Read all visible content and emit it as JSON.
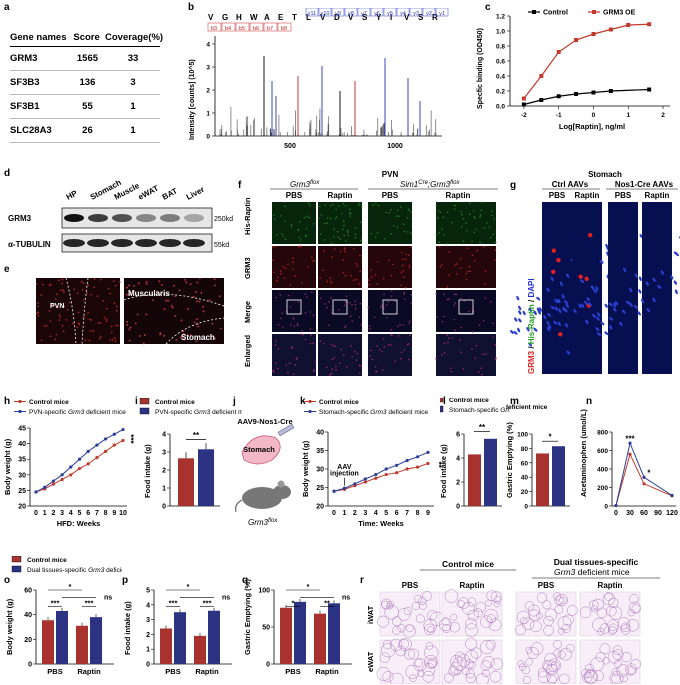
{
  "panels": {
    "a": "a",
    "b": "b",
    "c": "c",
    "d": "d",
    "e": "e",
    "f": "f",
    "g": "g",
    "h": "h",
    "i": "i",
    "j": "j",
    "k": "k",
    "l": "l",
    "m": "m",
    "n": "n",
    "o": "o",
    "p": "p",
    "q": "q",
    "r": "r"
  },
  "table_a": {
    "headers": [
      "Gene names",
      "Score",
      "Coverage(%)"
    ],
    "rows": [
      [
        "GRM3",
        "1565",
        "33"
      ],
      [
        "SF3B3",
        "136",
        "3"
      ],
      [
        "SF3B1",
        "55",
        "1"
      ],
      [
        "SLC28A3",
        "26",
        "1"
      ]
    ]
  },
  "panel_b": {
    "sequence": [
      "V",
      "G",
      "H",
      "W",
      "A",
      "E",
      "T",
      "L",
      "V",
      "D",
      "V",
      "S",
      "Y",
      "I",
      "V",
      "S",
      "R"
    ],
    "y_ions": [
      "y11",
      "y10",
      "y9",
      "y8",
      "y7",
      "y6",
      "y5",
      "y4",
      "y3",
      "y2",
      "y1"
    ],
    "b_ions": [
      "b3",
      "b4",
      "b5",
      "b6",
      "b7",
      "b8"
    ],
    "ylabel": "Intensity [counts] (10^5)",
    "xticks": [
      "500",
      "1000"
    ],
    "yticks": [
      "0",
      "1",
      "2",
      "3",
      "4"
    ]
  },
  "chart_c": {
    "type": "line",
    "ylabel": "Specfic binding (OD450)",
    "xlabel": "Log[Raptin], ng/ml",
    "xlim": [
      -2.4,
      2.2
    ],
    "ylim": [
      0,
      1.2
    ],
    "xticks": [
      "-2",
      "-1",
      "0",
      "1",
      "2"
    ],
    "yticks": [
      "0.0",
      "0.2",
      "0.4",
      "0.6",
      "0.8",
      "1.0",
      "1.2"
    ],
    "legend": [
      "Control",
      "GRM3 OE"
    ],
    "series": [
      {
        "name": "Control",
        "color": "#000000",
        "x": [
          -2,
          -1.5,
          -1,
          -0.5,
          0,
          0.5,
          1.6
        ],
        "y": [
          0.02,
          0.08,
          0.13,
          0.16,
          0.18,
          0.2,
          0.22
        ]
      },
      {
        "name": "GRM3 OE",
        "color": "#c0392b",
        "x": [
          -2,
          -1.5,
          -1,
          -0.5,
          0,
          0.5,
          1,
          1.6
        ],
        "y": [
          0.1,
          0.4,
          0.72,
          0.88,
          0.96,
          1.02,
          1.08,
          1.09
        ]
      }
    ]
  },
  "panel_d": {
    "lanes": [
      "HP",
      "Stomach",
      "Muscle",
      "eWAT",
      "BAT",
      "Liver"
    ],
    "rows": [
      "GRM3",
      "α-TUBULIN"
    ],
    "sizes": [
      "250kd",
      "55kd"
    ]
  },
  "panel_e": {
    "labels": [
      "PVN",
      "Muscularis",
      "Stomach"
    ]
  },
  "panel_f": {
    "title": "PVN",
    "groups": [
      "Grm3",
      "flox",
      "Sim1",
      "Cre",
      ";Grm3",
      "flox"
    ],
    "conds": [
      "PBS",
      "Raptin",
      "PBS",
      "Raptin"
    ],
    "rows": [
      "His-Raptin",
      "GRM3",
      "Merge",
      "Enlarged"
    ]
  },
  "panel_g": {
    "title": "Stomach",
    "groups": [
      "Ctrl AAVs",
      "Nos1-Cre AAVs"
    ],
    "conds": [
      "PBS",
      "Raptin",
      "PBS",
      "Raptin"
    ],
    "side": [
      "GRM3",
      " / ",
      "His-Raptin",
      " / ",
      "DAPI"
    ]
  },
  "chart_h": {
    "type": "line",
    "ylabel": "Body weight (g)",
    "xlabel": "HFD: Weeks",
    "ylim": [
      20,
      45
    ],
    "yticks": [
      "20",
      "25",
      "30",
      "35",
      "40",
      "45"
    ],
    "xticks": [
      "0",
      "1",
      "2",
      "3",
      "4",
      "5",
      "6",
      "7",
      "8",
      "9",
      "10"
    ],
    "legend_prefix": [
      "Control mice",
      "PVN-specific "
    ],
    "legend_gene": "Grm3",
    "legend_suffix": " deficient mice",
    "significance": "***",
    "series": [
      {
        "name": "Control mice",
        "color": "#c0392b",
        "x": [
          0,
          1,
          2,
          3,
          4,
          5,
          6,
          7,
          8,
          9,
          10
        ],
        "y": [
          24.5,
          25.5,
          27,
          28.5,
          30,
          32,
          33.5,
          35.5,
          37.5,
          39.5,
          41
        ]
      },
      {
        "name": "PVN-specific Grm3 deficient mice",
        "color": "#2c3e99",
        "x": [
          0,
          1,
          2,
          3,
          4,
          5,
          6,
          7,
          8,
          9,
          10
        ],
        "y": [
          24.5,
          26,
          28,
          30,
          32.5,
          35,
          37.5,
          39.5,
          41.5,
          43,
          44.5
        ]
      }
    ]
  },
  "chart_i": {
    "type": "bar",
    "ylabel": "Food intake (g)",
    "ylim": [
      0,
      4
    ],
    "yticks": [
      "0",
      "1",
      "2",
      "3",
      "4"
    ],
    "legend_prefix": [
      "Control mice",
      "PVN-specific "
    ],
    "legend_gene": "Grm3",
    "legend_suffix": " deficient mice",
    "significance": "**",
    "values": [
      2.65,
      3.15
    ],
    "colors": [
      "#a8322e",
      "#2b3382"
    ]
  },
  "panel_j": {
    "line1": "AAV9-Nos1-Cre",
    "organ": "Stomach",
    "mouse_gene": "Grm3",
    "mouse_sup": "flox"
  },
  "chart_k": {
    "type": "line",
    "ylabel": "Body weight (g)",
    "xlabel": "Time: Weeks",
    "ylim": [
      20,
      40
    ],
    "yticks": [
      "20",
      "25",
      "30",
      "35",
      "40"
    ],
    "xticks": [
      "0",
      "1",
      "2",
      "3",
      "4",
      "5",
      "6",
      "7",
      "8",
      "9"
    ],
    "legend_prefix": [
      "Control mice",
      "Stomach-specific "
    ],
    "legend_gene": "Grm3",
    "legend_suffix": " deficient mice",
    "annotation": [
      "AAV",
      "injection"
    ],
    "significance": "**",
    "series": [
      {
        "name": "Control mice",
        "color": "#c0392b",
        "x": [
          0,
          1,
          2,
          3,
          4,
          5,
          6,
          7,
          8,
          9
        ],
        "y": [
          24,
          24.5,
          25.5,
          26.5,
          27.5,
          28.5,
          29,
          30,
          30.5,
          31.5
        ]
      },
      {
        "name": "Stomach-specific Grm3 deficient mice",
        "color": "#2c3e99",
        "x": [
          0,
          1,
          2,
          3,
          4,
          5,
          6,
          7,
          8,
          9
        ],
        "y": [
          24,
          24.8,
          26,
          27.3,
          28.5,
          30,
          31,
          32.3,
          33.3,
          34.5
        ]
      }
    ]
  },
  "chart_l": {
    "type": "bar",
    "ylabel": "Food intake (g)",
    "ylim": [
      0,
      6
    ],
    "yticks": [
      "0",
      "2",
      "4",
      "6"
    ],
    "significance": "**",
    "values": [
      4.3,
      5.6
    ],
    "colors": [
      "#a8322e",
      "#2b3382"
    ],
    "legend_prefix": [
      "Control mice",
      "Stomach-specific "
    ],
    "legend_gene": "Grm3",
    "legend_suffix": " deficient mice"
  },
  "chart_m": {
    "type": "bar",
    "ylabel": "Gastric Emptying (%)",
    "ylim": [
      0,
      100
    ],
    "yticks": [
      "0",
      "20",
      "40",
      "60",
      "80",
      "100"
    ],
    "significance": "*",
    "values": [
      73,
      83
    ],
    "colors": [
      "#a8322e",
      "#2b3382"
    ]
  },
  "chart_n": {
    "type": "line",
    "ylabel": "Acetaminophen (umol/L)",
    "ylim": [
      0,
      800
    ],
    "yticks": [
      "0",
      "200",
      "400",
      "600",
      "800"
    ],
    "xticks": [
      "0",
      "30",
      "60",
      "90",
      "120"
    ],
    "sig1": "***",
    "sig2": "*",
    "series": [
      {
        "name": "Control mice",
        "color": "#c0392b",
        "x": [
          0,
          30,
          60,
          120
        ],
        "y": [
          5,
          560,
          240,
          110
        ]
      },
      {
        "name": "Stomach-specific Grm3 deficient mice",
        "color": "#2c3e99",
        "x": [
          0,
          30,
          60,
          120
        ],
        "y": [
          5,
          680,
          310,
          115
        ]
      }
    ]
  },
  "legend_opq": {
    "prefix": [
      "Control mice",
      "Dual tissues-specific "
    ],
    "gene": "Grm3",
    "suffix": " deficient mice"
  },
  "chart_o": {
    "type": "bar",
    "ylabel": "Body weight (g)",
    "ylim": [
      0,
      60
    ],
    "yticks": [
      "0",
      "20",
      "40",
      "60"
    ],
    "categories": [
      "PBS",
      "Raptin"
    ],
    "values": [
      35.5,
      43,
      31,
      38
    ],
    "sig": [
      "***",
      "*",
      "ns",
      "***"
    ]
  },
  "chart_p": {
    "type": "bar",
    "ylabel": "Food intake (g)",
    "ylim": [
      0,
      5
    ],
    "yticks": [
      "0",
      "1",
      "2",
      "3",
      "4",
      "5"
    ],
    "categories": [
      "PBS",
      "Raptin"
    ],
    "values": [
      2.4,
      3.5,
      1.9,
      3.6
    ],
    "sig": [
      "***",
      "*",
      "ns",
      "***"
    ]
  },
  "chart_q": {
    "type": "bar",
    "ylabel": "Gastric Emptying (%)",
    "ylim": [
      0,
      100
    ],
    "yticks": [
      "0",
      "50",
      "100"
    ],
    "categories": [
      "PBS",
      "Raptin"
    ],
    "values": [
      76,
      84,
      68,
      82
    ],
    "sig": [
      "*",
      "*",
      "ns",
      "**"
    ]
  },
  "panel_r": {
    "groups": [
      "Control mice",
      "Dual tissues-specific",
      "Grm3",
      " deficient mice"
    ],
    "conds": [
      "PBS",
      "Raptin",
      "PBS",
      "Raptin"
    ],
    "rows": [
      "iWAT",
      "eWAT"
    ]
  }
}
